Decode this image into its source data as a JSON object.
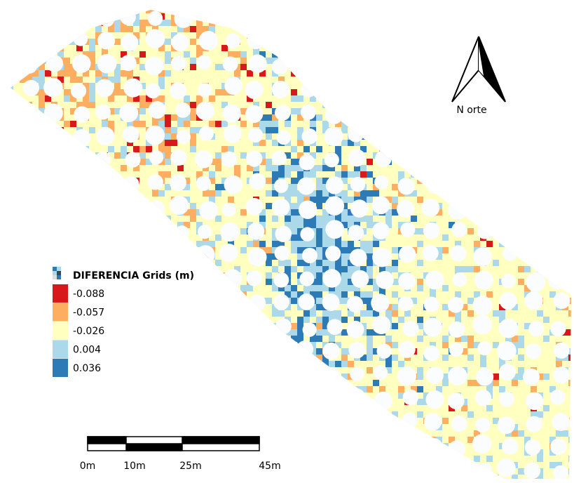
{
  "legend": {
    "title": "DIFERENCIA Grids (m)",
    "items": [
      {
        "label": "-0.088",
        "color": "#d7191c"
      },
      {
        "label": "-0.057",
        "color": "#fdae61"
      },
      {
        "label": "-0.026",
        "color": "#ffffbf"
      },
      {
        "label": "0.004",
        "color": "#abd9e9"
      },
      {
        "label": "0.036",
        "color": "#2c7bb6"
      }
    ]
  },
  "north_arrow": {
    "label": "N orte"
  },
  "scale_bar": {
    "labels": [
      "0m",
      "10m",
      "25m",
      "45m"
    ]
  }
}
